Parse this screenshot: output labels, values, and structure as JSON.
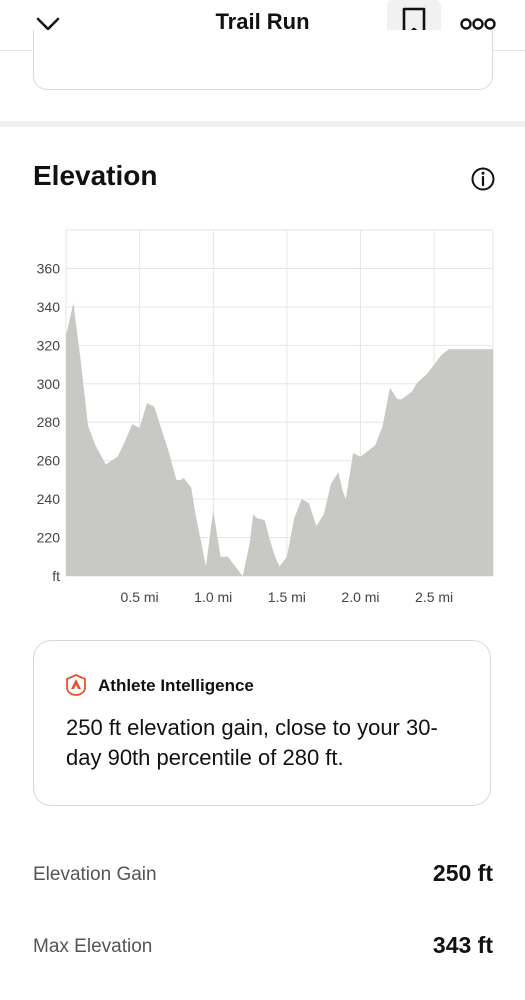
{
  "header": {
    "title": "Trail Run",
    "back_icon": "chevron-down-icon",
    "bookmark_icon": "bookmark-icon",
    "more_icon": "more-dots-icon"
  },
  "section": {
    "title": "Elevation",
    "info_icon": "info-icon"
  },
  "chart_data": {
    "type": "area",
    "title": "",
    "xlabel": "",
    "ylabel": "ft",
    "xlim": [
      0,
      2.9
    ],
    "ylim": [
      200,
      380
    ],
    "y_ticks": [
      360,
      340,
      320,
      300,
      280,
      260,
      240,
      220
    ],
    "y_unit_label": "ft",
    "x_ticks": [
      {
        "value": 0.5,
        "label": "0.5 mi"
      },
      {
        "value": 1.0,
        "label": "1.0 mi"
      },
      {
        "value": 1.5,
        "label": "1.5 mi"
      },
      {
        "value": 2.0,
        "label": "2.0 mi"
      },
      {
        "value": 2.5,
        "label": "2.5 mi"
      }
    ],
    "fill_color": "#c8c8c4",
    "grid": true,
    "series": [
      {
        "x": [
          0.0,
          0.05,
          0.1,
          0.15,
          0.2,
          0.27,
          0.35,
          0.4,
          0.45,
          0.5,
          0.55,
          0.6,
          0.7,
          0.75,
          0.78,
          0.8,
          0.85,
          0.88,
          0.95,
          1.0,
          1.05,
          1.1,
          1.15,
          1.2,
          1.25,
          1.27,
          1.3,
          1.35,
          1.38,
          1.42,
          1.45,
          1.5,
          1.55,
          1.6,
          1.65,
          1.7,
          1.75,
          1.8,
          1.85,
          1.88,
          1.9,
          1.95,
          2.0,
          2.05,
          2.1,
          2.15,
          2.2,
          2.25,
          2.28,
          2.35,
          2.38,
          2.42,
          2.45,
          2.5,
          2.55,
          2.6,
          2.7,
          2.8,
          2.9
        ],
        "y": [
          325,
          342,
          312,
          278,
          268,
          258,
          262,
          270,
          279,
          277,
          290,
          288,
          264,
          250,
          250,
          251,
          246,
          232,
          205,
          234,
          210,
          210,
          205,
          200,
          218,
          232,
          230,
          229,
          220,
          210,
          205,
          210,
          230,
          240,
          238,
          226,
          232,
          248,
          254,
          244,
          240,
          264,
          262,
          265,
          268,
          278,
          298,
          292,
          292,
          296,
          300,
          303,
          305,
          310,
          315,
          318,
          318,
          318,
          318
        ]
      }
    ]
  },
  "insight": {
    "icon": "athlete-intelligence-icon",
    "title": "Athlete Intelligence",
    "text": "250 ft elevation gain, close to your 30-day 90th percentile of 280 ft."
  },
  "stats": [
    {
      "label": "Elevation Gain",
      "value": "250 ft"
    },
    {
      "label": "Max Elevation",
      "value": "343 ft"
    }
  ]
}
